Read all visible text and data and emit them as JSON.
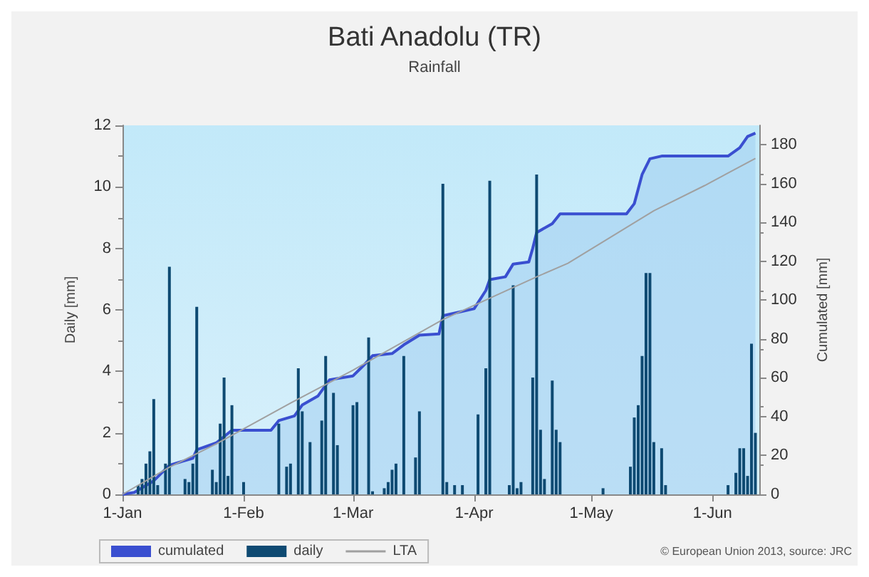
{
  "chart_data": {
    "type": "bar",
    "title": "Bati Anadolu (TR)",
    "subtitle": "Rainfall",
    "ylabel": "Daily [mm]",
    "y2label": "Cumulated [mm]",
    "xlim": [
      "2013-01-01",
      "2013-06-13"
    ],
    "xticks": [
      {
        "value": "2013-01-01",
        "label": "1-Jan"
      },
      {
        "value": "2013-02-01",
        "label": "1-Feb"
      },
      {
        "value": "2013-03-01",
        "label": "1-Mar"
      },
      {
        "value": "2013-04-01",
        "label": "1-Apr"
      },
      {
        "value": "2013-05-01",
        "label": "1-May"
      },
      {
        "value": "2013-06-01",
        "label": "1-Jun"
      }
    ],
    "ylim": [
      0,
      12
    ],
    "yticks": [
      0,
      2,
      4,
      6,
      8,
      10,
      12
    ],
    "y2lim": [
      0,
      190
    ],
    "y2ticks": [
      0,
      20,
      40,
      60,
      80,
      100,
      120,
      140,
      160,
      180
    ],
    "grid": false,
    "legend": "bottom left",
    "marker": "none",
    "annotations": [
      "© European Union 2013, source: JRC"
    ],
    "series": [
      {
        "name": "cumulated",
        "type": "area",
        "axis": "y2",
        "color": "#3a4fd0",
        "x": [
          "2013-01-01",
          "2013-01-04",
          "2013-01-09",
          "2013-01-13",
          "2013-01-19",
          "2013-01-20",
          "2013-01-25",
          "2013-01-29",
          "2013-02-08",
          "2013-02-10",
          "2013-02-14",
          "2013-02-16",
          "2013-02-20",
          "2013-02-23",
          "2013-03-01",
          "2013-03-04",
          "2013-03-06",
          "2013-03-11",
          "2013-03-14",
          "2013-03-18",
          "2013-03-23",
          "2013-03-24",
          "2013-04-01",
          "2013-04-04",
          "2013-04-05",
          "2013-04-09",
          "2013-04-11",
          "2013-04-15",
          "2013-04-16",
          "2013-04-17",
          "2013-04-21",
          "2013-04-23",
          "2013-05-10",
          "2013-05-12",
          "2013-05-14",
          "2013-05-16",
          "2013-05-19",
          "2013-06-05",
          "2013-06-08",
          "2013-06-10",
          "2013-06-12"
        ],
        "values": [
          0,
          1,
          7,
          15,
          18.6,
          23,
          26.5,
          33,
          33,
          38,
          40.4,
          46,
          50.6,
          59,
          61,
          67,
          71.4,
          72.5,
          77,
          82,
          82.6,
          92,
          95.6,
          105,
          110.6,
          112,
          118.6,
          119.7,
          126.7,
          134.8,
          139.4,
          144.4,
          144.4,
          149.7,
          164.7,
          172.8,
          174.2,
          174.2,
          178.5,
          184.3,
          186
        ]
      },
      {
        "name": "daily",
        "color": "#0e4a72",
        "x": [
          "2013-01-05",
          "2013-01-06",
          "2013-01-07",
          "2013-01-08",
          "2013-01-09",
          "2013-01-10",
          "2013-01-12",
          "2013-01-13",
          "2013-01-17",
          "2013-01-18",
          "2013-01-19",
          "2013-01-20",
          "2013-01-24",
          "2013-01-25",
          "2013-01-26",
          "2013-01-27",
          "2013-01-28",
          "2013-01-29",
          "2013-02-01",
          "2013-02-10",
          "2013-02-12",
          "2013-02-13",
          "2013-02-15",
          "2013-02-16",
          "2013-02-18",
          "2013-02-21",
          "2013-02-22",
          "2013-02-24",
          "2013-02-25",
          "2013-03-01",
          "2013-03-02",
          "2013-03-05",
          "2013-03-06",
          "2013-03-09",
          "2013-03-10",
          "2013-03-11",
          "2013-03-12",
          "2013-03-14",
          "2013-03-17",
          "2013-03-18",
          "2013-03-24",
          "2013-03-25",
          "2013-03-27",
          "2013-03-29",
          "2013-04-02",
          "2013-04-04",
          "2013-04-05",
          "2013-04-10",
          "2013-04-11",
          "2013-04-12",
          "2013-04-13",
          "2013-04-16",
          "2013-04-17",
          "2013-04-18",
          "2013-04-19",
          "2013-04-21",
          "2013-04-22",
          "2013-04-23",
          "2013-05-04",
          "2013-05-11",
          "2013-05-12",
          "2013-05-13",
          "2013-05-14",
          "2013-05-15",
          "2013-05-16",
          "2013-05-17",
          "2013-05-19",
          "2013-05-20",
          "2013-06-05",
          "2013-06-07",
          "2013-06-08",
          "2013-06-09",
          "2013-06-10",
          "2013-06-11",
          "2013-06-12"
        ],
        "values": [
          0.3,
          0.5,
          1.0,
          1.4,
          3.1,
          0.3,
          1.0,
          7.4,
          0.5,
          0.4,
          1.0,
          6.1,
          0.8,
          0.4,
          2.3,
          3.8,
          0.6,
          2.9,
          0.4,
          2.3,
          0.9,
          1.0,
          4.1,
          2.7,
          1.7,
          2.4,
          4.5,
          3.3,
          1.6,
          2.9,
          3.0,
          5.1,
          0.1,
          0.2,
          0.4,
          0.8,
          1.0,
          4.5,
          1.2,
          2.7,
          10.1,
          0.4,
          0.3,
          0.3,
          2.6,
          4.1,
          10.2,
          0.3,
          6.8,
          0.2,
          0.4,
          3.8,
          10.4,
          2.1,
          0.5,
          3.7,
          2.1,
          1.7,
          0.2,
          0.9,
          2.5,
          2.9,
          4.5,
          7.2,
          7.2,
          1.7,
          1.5,
          0.3,
          0.3,
          0.7,
          1.5,
          1.5,
          0.6,
          4.9,
          2.0
        ]
      },
      {
        "name": "LTA",
        "type": "line",
        "axis": "y2",
        "color": "#a0a0a0",
        "x": [
          "2013-01-01",
          "2013-01-13",
          "2013-01-25",
          "2013-02-13",
          "2013-03-01",
          "2013-03-24",
          "2013-04-17",
          "2013-04-25",
          "2013-05-17",
          "2013-05-30",
          "2013-06-12"
        ],
        "values": [
          0,
          14,
          26,
          47,
          64,
          90,
          112,
          119,
          146,
          159,
          173
        ]
      }
    ]
  }
}
